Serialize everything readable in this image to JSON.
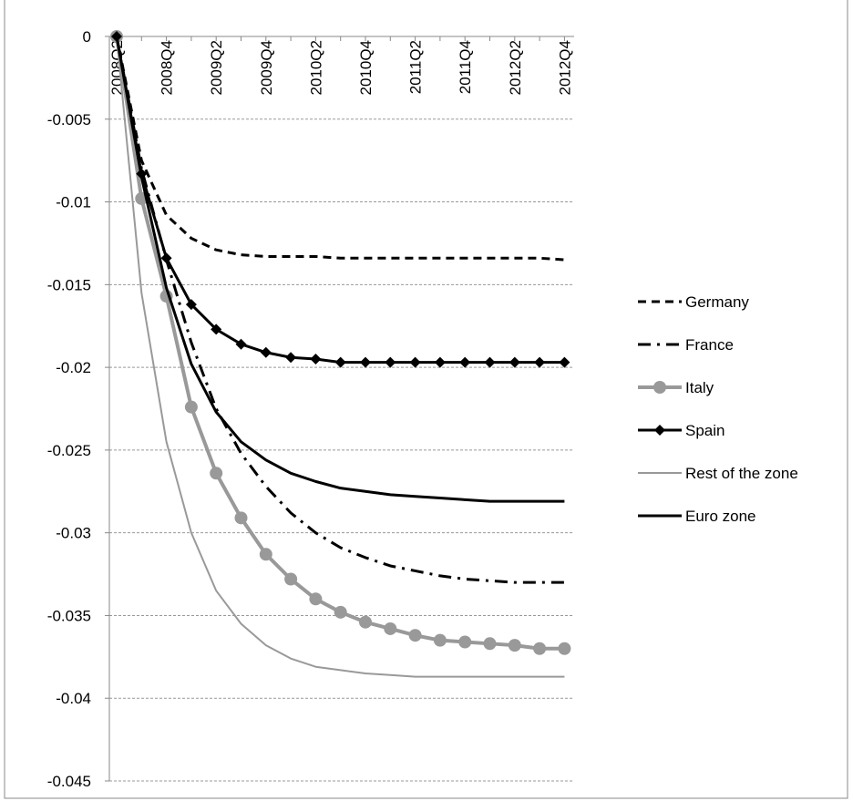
{
  "chart_data": {
    "type": "line",
    "categories": [
      "2008Q2",
      null,
      "2008Q4",
      null,
      "2009Q2",
      null,
      "2009Q4",
      null,
      "2010Q2",
      null,
      "2010Q4",
      null,
      "2011Q2",
      null,
      "2011Q4",
      null,
      "2012Q2",
      null,
      "2012Q4"
    ],
    "ylim": [
      -0.045,
      0
    ],
    "yticks": [
      0,
      -0.005,
      -0.01,
      -0.015,
      -0.02,
      -0.025,
      -0.03,
      -0.035,
      -0.04,
      -0.045
    ],
    "grid": true,
    "legend": "right",
    "series": [
      {
        "name": "Germany",
        "color": "#000000",
        "style": "dashed",
        "marker": "none",
        "values": [
          0,
          -0.0075,
          -0.0108,
          -0.0122,
          -0.0129,
          -0.0132,
          -0.0133,
          -0.0133,
          -0.0133,
          -0.0134,
          -0.0134,
          -0.0134,
          -0.0134,
          -0.0134,
          -0.0134,
          -0.0134,
          -0.0134,
          -0.0134,
          -0.0135
        ]
      },
      {
        "name": "France",
        "color": "#000000",
        "style": "dashdot",
        "marker": "none",
        "values": [
          0,
          -0.008,
          -0.0135,
          -0.0185,
          -0.0225,
          -0.0252,
          -0.0272,
          -0.0288,
          -0.03,
          -0.0309,
          -0.0315,
          -0.032,
          -0.0323,
          -0.0326,
          -0.0328,
          -0.0329,
          -0.033,
          -0.033,
          -0.033
        ]
      },
      {
        "name": "Italy",
        "color": "#999999",
        "style": "solid",
        "marker": "circle",
        "values": [
          0,
          -0.0098,
          -0.0157,
          -0.0224,
          -0.0264,
          -0.0291,
          -0.0313,
          -0.0328,
          -0.034,
          -0.0348,
          -0.0354,
          -0.0358,
          -0.0362,
          -0.0365,
          -0.0366,
          -0.0367,
          -0.0368,
          -0.037,
          -0.037
        ]
      },
      {
        "name": "Spain",
        "color": "#000000",
        "style": "solid",
        "marker": "diamond",
        "values": [
          0,
          -0.0083,
          -0.0134,
          -0.0162,
          -0.0177,
          -0.0186,
          -0.0191,
          -0.0194,
          -0.0195,
          -0.0197,
          -0.0197,
          -0.0197,
          -0.0197,
          -0.0197,
          -0.0197,
          -0.0197,
          -0.0197,
          -0.0197,
          -0.0197
        ]
      },
      {
        "name": "Rest of the zone",
        "color": "#999999",
        "style": "thin",
        "marker": "none",
        "values": [
          0,
          -0.0155,
          -0.0245,
          -0.03,
          -0.0335,
          -0.0355,
          -0.0368,
          -0.0376,
          -0.0381,
          -0.0383,
          -0.0385,
          -0.0386,
          -0.0387,
          -0.0387,
          -0.0387,
          -0.0387,
          -0.0387,
          -0.0387,
          -0.0387
        ]
      },
      {
        "name": "Euro zone",
        "color": "#000000",
        "style": "solid",
        "marker": "none",
        "values": [
          0,
          -0.0085,
          -0.0152,
          -0.0198,
          -0.0227,
          -0.0245,
          -0.0256,
          -0.0264,
          -0.0269,
          -0.0273,
          -0.0275,
          -0.0277,
          -0.0278,
          -0.0279,
          -0.028,
          -0.0281,
          -0.0281,
          -0.0281,
          -0.0281
        ]
      }
    ]
  }
}
